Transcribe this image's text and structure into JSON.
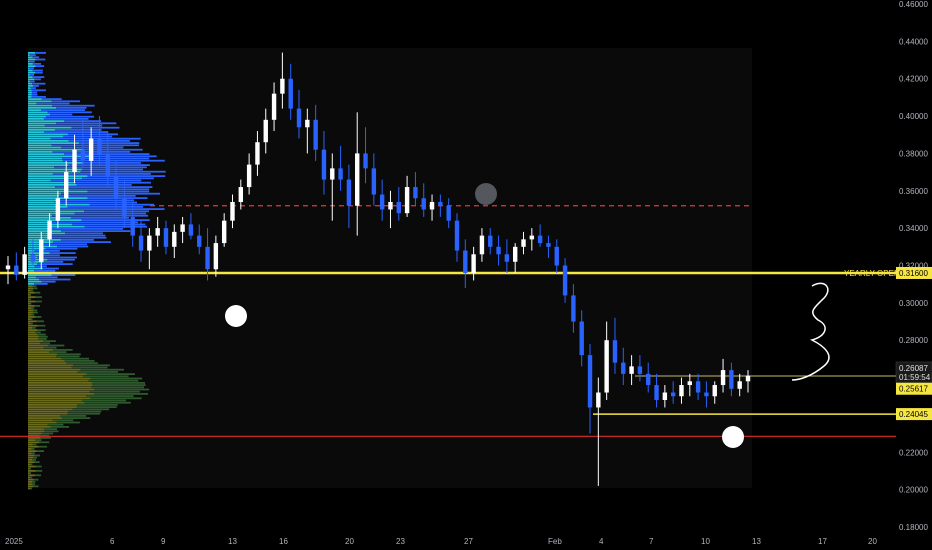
{
  "chart_data": {
    "type": "candlestick",
    "y_axis": {
      "min": 0.18,
      "max": 0.46,
      "ticks": [
        "0.46000",
        "0.44000",
        "0.42000",
        "0.40000",
        "0.38000",
        "0.36000",
        "0.34000",
        "0.32000",
        "0.30000",
        "0.28000",
        "0.26000",
        "0.24000",
        "0.22000",
        "0.20000",
        "0.18000"
      ]
    },
    "x_axis": {
      "ticks": [
        "2025",
        "6",
        "9",
        "13",
        "16",
        "20",
        "23",
        "27",
        "Feb",
        "4",
        "7",
        "10",
        "13",
        "17",
        "20"
      ]
    },
    "ohlc": [
      {
        "o": 0.318,
        "h": 0.325,
        "l": 0.31,
        "c": 0.32
      },
      {
        "o": 0.32,
        "h": 0.327,
        "l": 0.312,
        "c": 0.315
      },
      {
        "o": 0.315,
        "h": 0.33,
        "l": 0.313,
        "c": 0.326
      },
      {
        "o": 0.326,
        "h": 0.334,
        "l": 0.32,
        "c": 0.322
      },
      {
        "o": 0.322,
        "h": 0.338,
        "l": 0.318,
        "c": 0.334
      },
      {
        "o": 0.334,
        "h": 0.348,
        "l": 0.33,
        "c": 0.344
      },
      {
        "o": 0.344,
        "h": 0.36,
        "l": 0.34,
        "c": 0.356
      },
      {
        "o": 0.356,
        "h": 0.376,
        "l": 0.352,
        "c": 0.37
      },
      {
        "o": 0.37,
        "h": 0.39,
        "l": 0.364,
        "c": 0.382
      },
      {
        "o": 0.382,
        "h": 0.398,
        "l": 0.372,
        "c": 0.376
      },
      {
        "o": 0.376,
        "h": 0.394,
        "l": 0.368,
        "c": 0.388
      },
      {
        "o": 0.388,
        "h": 0.4,
        "l": 0.374,
        "c": 0.38
      },
      {
        "o": 0.38,
        "h": 0.392,
        "l": 0.362,
        "c": 0.368
      },
      {
        "o": 0.368,
        "h": 0.376,
        "l": 0.35,
        "c": 0.356
      },
      {
        "o": 0.356,
        "h": 0.366,
        "l": 0.34,
        "c": 0.346
      },
      {
        "o": 0.346,
        "h": 0.354,
        "l": 0.33,
        "c": 0.336
      },
      {
        "o": 0.336,
        "h": 0.344,
        "l": 0.322,
        "c": 0.328
      },
      {
        "o": 0.328,
        "h": 0.34,
        "l": 0.318,
        "c": 0.336
      },
      {
        "o": 0.336,
        "h": 0.346,
        "l": 0.33,
        "c": 0.34
      },
      {
        "o": 0.34,
        "h": 0.344,
        "l": 0.326,
        "c": 0.33
      },
      {
        "o": 0.33,
        "h": 0.342,
        "l": 0.324,
        "c": 0.338
      },
      {
        "o": 0.338,
        "h": 0.346,
        "l": 0.332,
        "c": 0.342
      },
      {
        "o": 0.342,
        "h": 0.348,
        "l": 0.334,
        "c": 0.336
      },
      {
        "o": 0.336,
        "h": 0.342,
        "l": 0.326,
        "c": 0.33
      },
      {
        "o": 0.33,
        "h": 0.34,
        "l": 0.312,
        "c": 0.318
      },
      {
        "o": 0.318,
        "h": 0.336,
        "l": 0.314,
        "c": 0.332
      },
      {
        "o": 0.332,
        "h": 0.348,
        "l": 0.33,
        "c": 0.344
      },
      {
        "o": 0.344,
        "h": 0.358,
        "l": 0.34,
        "c": 0.354
      },
      {
        "o": 0.354,
        "h": 0.366,
        "l": 0.35,
        "c": 0.362
      },
      {
        "o": 0.362,
        "h": 0.38,
        "l": 0.358,
        "c": 0.374
      },
      {
        "o": 0.374,
        "h": 0.392,
        "l": 0.368,
        "c": 0.386
      },
      {
        "o": 0.386,
        "h": 0.404,
        "l": 0.38,
        "c": 0.398
      },
      {
        "o": 0.398,
        "h": 0.418,
        "l": 0.392,
        "c": 0.412
      },
      {
        "o": 0.412,
        "h": 0.434,
        "l": 0.404,
        "c": 0.42
      },
      {
        "o": 0.42,
        "h": 0.428,
        "l": 0.398,
        "c": 0.404
      },
      {
        "o": 0.404,
        "h": 0.414,
        "l": 0.388,
        "c": 0.394
      },
      {
        "o": 0.394,
        "h": 0.404,
        "l": 0.38,
        "c": 0.398
      },
      {
        "o": 0.398,
        "h": 0.406,
        "l": 0.376,
        "c": 0.382
      },
      {
        "o": 0.382,
        "h": 0.392,
        "l": 0.358,
        "c": 0.366
      },
      {
        "o": 0.366,
        "h": 0.38,
        "l": 0.344,
        "c": 0.372
      },
      {
        "o": 0.372,
        "h": 0.384,
        "l": 0.36,
        "c": 0.366
      },
      {
        "o": 0.366,
        "h": 0.374,
        "l": 0.34,
        "c": 0.352
      },
      {
        "o": 0.352,
        "h": 0.402,
        "l": 0.336,
        "c": 0.38
      },
      {
        "o": 0.38,
        "h": 0.394,
        "l": 0.364,
        "c": 0.372
      },
      {
        "o": 0.372,
        "h": 0.38,
        "l": 0.352,
        "c": 0.358
      },
      {
        "o": 0.358,
        "h": 0.366,
        "l": 0.344,
        "c": 0.35
      },
      {
        "o": 0.35,
        "h": 0.36,
        "l": 0.34,
        "c": 0.354
      },
      {
        "o": 0.354,
        "h": 0.362,
        "l": 0.344,
        "c": 0.348
      },
      {
        "o": 0.348,
        "h": 0.368,
        "l": 0.346,
        "c": 0.362
      },
      {
        "o": 0.362,
        "h": 0.37,
        "l": 0.352,
        "c": 0.356
      },
      {
        "o": 0.356,
        "h": 0.364,
        "l": 0.346,
        "c": 0.35
      },
      {
        "o": 0.35,
        "h": 0.358,
        "l": 0.344,
        "c": 0.354
      },
      {
        "o": 0.354,
        "h": 0.358,
        "l": 0.346,
        "c": 0.352
      },
      {
        "o": 0.352,
        "h": 0.356,
        "l": 0.34,
        "c": 0.344
      },
      {
        "o": 0.344,
        "h": 0.348,
        "l": 0.322,
        "c": 0.328
      },
      {
        "o": 0.328,
        "h": 0.334,
        "l": 0.308,
        "c": 0.316
      },
      {
        "o": 0.316,
        "h": 0.33,
        "l": 0.312,
        "c": 0.326
      },
      {
        "o": 0.326,
        "h": 0.34,
        "l": 0.322,
        "c": 0.336
      },
      {
        "o": 0.336,
        "h": 0.34,
        "l": 0.326,
        "c": 0.33
      },
      {
        "o": 0.33,
        "h": 0.336,
        "l": 0.32,
        "c": 0.326
      },
      {
        "o": 0.326,
        "h": 0.334,
        "l": 0.316,
        "c": 0.322
      },
      {
        "o": 0.322,
        "h": 0.332,
        "l": 0.316,
        "c": 0.33
      },
      {
        "o": 0.33,
        "h": 0.338,
        "l": 0.326,
        "c": 0.334
      },
      {
        "o": 0.334,
        "h": 0.34,
        "l": 0.328,
        "c": 0.336
      },
      {
        "o": 0.336,
        "h": 0.342,
        "l": 0.33,
        "c": 0.332
      },
      {
        "o": 0.332,
        "h": 0.336,
        "l": 0.324,
        "c": 0.33
      },
      {
        "o": 0.33,
        "h": 0.334,
        "l": 0.316,
        "c": 0.32
      },
      {
        "o": 0.32,
        "h": 0.324,
        "l": 0.3,
        "c": 0.304
      },
      {
        "o": 0.304,
        "h": 0.31,
        "l": 0.284,
        "c": 0.29
      },
      {
        "o": 0.29,
        "h": 0.296,
        "l": 0.266,
        "c": 0.272
      },
      {
        "o": 0.272,
        "h": 0.278,
        "l": 0.23,
        "c": 0.244
      },
      {
        "o": 0.244,
        "h": 0.26,
        "l": 0.202,
        "c": 0.252
      },
      {
        "o": 0.252,
        "h": 0.29,
        "l": 0.248,
        "c": 0.28
      },
      {
        "o": 0.28,
        "h": 0.292,
        "l": 0.262,
        "c": 0.268
      },
      {
        "o": 0.268,
        "h": 0.276,
        "l": 0.256,
        "c": 0.262
      },
      {
        "o": 0.262,
        "h": 0.272,
        "l": 0.256,
        "c": 0.266
      },
      {
        "o": 0.266,
        "h": 0.272,
        "l": 0.258,
        "c": 0.262
      },
      {
        "o": 0.262,
        "h": 0.268,
        "l": 0.252,
        "c": 0.256
      },
      {
        "o": 0.256,
        "h": 0.262,
        "l": 0.244,
        "c": 0.248
      },
      {
        "o": 0.248,
        "h": 0.256,
        "l": 0.244,
        "c": 0.252
      },
      {
        "o": 0.252,
        "h": 0.258,
        "l": 0.246,
        "c": 0.25
      },
      {
        "o": 0.25,
        "h": 0.26,
        "l": 0.246,
        "c": 0.256
      },
      {
        "o": 0.256,
        "h": 0.262,
        "l": 0.25,
        "c": 0.258
      },
      {
        "o": 0.258,
        "h": 0.262,
        "l": 0.248,
        "c": 0.252
      },
      {
        "o": 0.252,
        "h": 0.258,
        "l": 0.244,
        "c": 0.25
      },
      {
        "o": 0.25,
        "h": 0.258,
        "l": 0.246,
        "c": 0.256
      },
      {
        "o": 0.256,
        "h": 0.27,
        "l": 0.252,
        "c": 0.264
      },
      {
        "o": 0.264,
        "h": 0.268,
        "l": 0.25,
        "c": 0.254
      },
      {
        "o": 0.254,
        "h": 0.262,
        "l": 0.25,
        "c": 0.258
      },
      {
        "o": 0.258,
        "h": 0.264,
        "l": 0.252,
        "c": 0.261
      }
    ],
    "lines": [
      {
        "label": "YEARLY OPEN",
        "value": 0.316,
        "value_label": "0.31600",
        "color": "#f5e642",
        "style": "solid"
      },
      {
        "value": 0.352,
        "color": "#e53935",
        "style": "dashed"
      },
      {
        "value": 0.2285,
        "color": "#c62828",
        "style": "solid"
      },
      {
        "value_label": "0.24045",
        "value": 0.24045,
        "color": "#f5e642",
        "style": "solid"
      }
    ],
    "price_badges": [
      {
        "label": "0.26087",
        "value": 0.26087,
        "sublabel": "01:59:54"
      },
      {
        "label": "0.25617",
        "value": 0.25617
      }
    ],
    "colors": {
      "up": "#ffffff",
      "down": "#2962ff",
      "yellow": "#f5e642",
      "volume_profile_up": "#26c6da",
      "volume_profile_down": "#2962ff",
      "volume_profile_lower": "#4a5a1a"
    }
  }
}
